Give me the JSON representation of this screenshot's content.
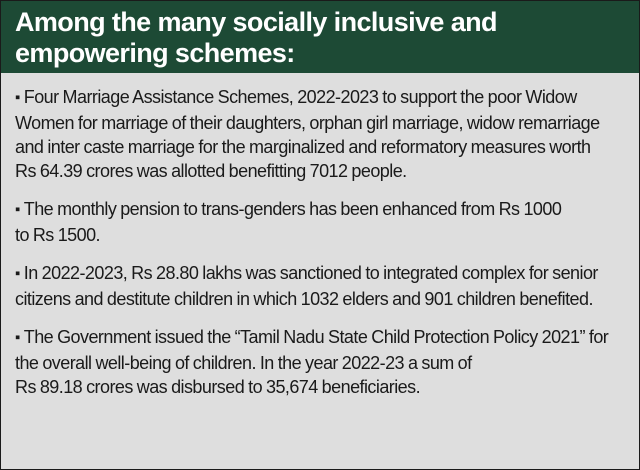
{
  "header": {
    "title_line1": "Among the many socially inclusive and",
    "title_line2": "empowering schemes:"
  },
  "bullet_marker": "▪",
  "items": [
    {
      "lines": [
        "Four Marriage Assistance Schemes, 2022-2023 to support the poor Widow",
        "Women for marriage of their daughters, orphan girl marriage, widow remarriage",
        "and inter caste marriage for the marginalized and reformatory measures worth",
        "Rs 64.39 crores was allotted benefitting 7012 people."
      ]
    },
    {
      "lines": [
        "The monthly pension to trans-genders has been enhanced from Rs 1000",
        "to Rs 1500."
      ]
    },
    {
      "lines": [
        "In 2022-2023, Rs 28.80 lakhs was sanctioned to integrated complex for senior",
        "citizens and destitute children in which 1032 elders and 901 children benefited."
      ]
    },
    {
      "lines": [
        "The Government issued the “Tamil Nadu State Child Protection Policy 2021” for",
        "the overall well-being of children. In the year 2022-23 a sum of",
        "Rs 89.18 crores was disbursed to 35,674 beneficiaries."
      ]
    }
  ],
  "colors": {
    "header_bg": "#1d4a35",
    "header_text": "#ffffff",
    "body_bg": "#dedede",
    "body_text": "#1a1a1a"
  }
}
